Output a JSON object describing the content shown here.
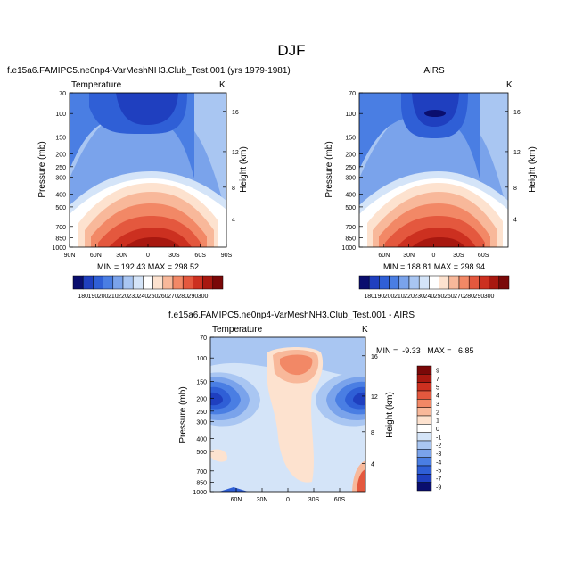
{
  "page": {
    "title": "DJF"
  },
  "chart_data": [
    {
      "type": "heatmap",
      "title": "f.e15a6.FAMIPC5.ne0np4-VarMeshNH3.Club_Test.001 (yrs 1979-1981)",
      "variable": "Temperature",
      "units": "K",
      "ylabel": "Pressure (mb)",
      "y2label": "Height (km)",
      "x_ticks": [
        "90N",
        "60N",
        "30N",
        "0",
        "30S",
        "60S",
        "90S"
      ],
      "y_ticks": [
        "70",
        "100",
        "150",
        "200",
        "250",
        "300",
        "400",
        "500",
        "700",
        "850",
        "1000"
      ],
      "y2_ticks": [
        "16",
        "12",
        "8",
        "4"
      ],
      "stats": "MIN = 192.43   MAX = 298.52",
      "min": 192.43,
      "max": 298.52
    },
    {
      "type": "heatmap",
      "title": "AIRS",
      "units": "K",
      "ylabel": "Pressure (mb)",
      "y2label": "Height (km)",
      "x_ticks": [
        "60N",
        "30N",
        "0",
        "30S",
        "60S"
      ],
      "y_ticks": [
        "70",
        "100",
        "150",
        "200",
        "250",
        "300",
        "400",
        "500",
        "700",
        "850",
        "1000"
      ],
      "y2_ticks": [
        "16",
        "12",
        "8",
        "4"
      ],
      "stats": "MIN = 188.81   MAX = 298.94",
      "min": 188.81,
      "max": 298.94
    },
    {
      "type": "heatmap",
      "title": "f.e15a6.FAMIPC5.ne0np4-VarMeshNH3.Club_Test.001 - AIRS",
      "variable": "Temperature",
      "units": "K",
      "ylabel": "Pressure (mb)",
      "y2label": "Height (km)",
      "x_ticks": [
        "60N",
        "30N",
        "0",
        "30S",
        "60S"
      ],
      "y_ticks": [
        "70",
        "100",
        "150",
        "200",
        "250",
        "300",
        "400",
        "500",
        "700",
        "850",
        "1000"
      ],
      "y2_ticks": [
        "16",
        "12",
        "8",
        "4"
      ],
      "stats": "MIN =  -9.33   MAX =   6.85",
      "min": -9.33,
      "max": 6.85
    }
  ],
  "colorbars": {
    "absolute": {
      "labels": [
        "180",
        "190",
        "200",
        "210",
        "220",
        "230",
        "240",
        "250",
        "260",
        "270",
        "280",
        "290",
        "300"
      ],
      "colors": [
        "#0a0e6e",
        "#1f3fbf",
        "#2f5fd6",
        "#4a7ee3",
        "#7aa3eb",
        "#a9c6f2",
        "#d4e4f8",
        "#ffffff",
        "#fde2cf",
        "#f8b89a",
        "#f28866",
        "#e4583e",
        "#cc3020",
        "#a81810",
        "#7a0808"
      ]
    },
    "difference": {
      "labels": [
        "9",
        "7",
        "5",
        "4",
        "3",
        "2",
        "1",
        "0",
        "-1",
        "-2",
        "-3",
        "-4",
        "-5",
        "-7",
        "-9"
      ],
      "colors": [
        "#7a0808",
        "#a81810",
        "#cc3020",
        "#e4583e",
        "#f28866",
        "#f8b89a",
        "#fde2cf",
        "#ffffff",
        "#d4e4f8",
        "#a9c6f2",
        "#7aa3eb",
        "#4a7ee3",
        "#2f5fd6",
        "#1f3fbf",
        "#0a0e6e"
      ]
    }
  }
}
